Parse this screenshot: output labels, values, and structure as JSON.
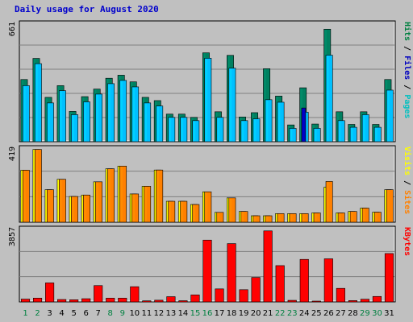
{
  "chart_data": [
    {
      "type": "bar",
      "title": "Daily usage for August 2020",
      "panel": "top",
      "ymax_label": "661",
      "ylim": [
        0,
        661
      ],
      "legend": [
        {
          "label": "Pages",
          "color": "#00c0c0"
        },
        {
          "label": "Files",
          "color": "#0000c0"
        },
        {
          "label": "Hits",
          "color": "#008040"
        }
      ],
      "categories": [
        "1",
        "2",
        "3",
        "4",
        "5",
        "6",
        "7",
        "8",
        "9",
        "10",
        "11",
        "12",
        "13",
        "14",
        "15",
        "16",
        "17",
        "18",
        "19",
        "20",
        "21",
        "22",
        "23",
        "24",
        "25",
        "26",
        "27",
        "28",
        "29",
        "30",
        "31"
      ],
      "series": [
        {
          "name": "Hits",
          "color": "#008060",
          "values": [
            345,
            462,
            246,
            311,
            168,
            250,
            292,
            352,
            369,
            332,
            246,
            228,
            153,
            153,
            135,
            493,
            166,
            479,
            137,
            161,
            405,
            253,
            93,
            299,
            98,
            624,
            166,
            96,
            166,
            96,
            345
          ]
        },
        {
          "name": "Files",
          "color": "#00c0ff",
          "values": [
            311,
            433,
            215,
            283,
            150,
            221,
            264,
            322,
            340,
            304,
            215,
            198,
            135,
            135,
            117,
            463,
            135,
            408,
            117,
            127,
            233,
            219,
            74,
            164,
            74,
            480,
            117,
            80,
            150,
            80,
            286
          ]
        },
        {
          "name": "Pages",
          "color": "#0000c0",
          "values": [
            0,
            0,
            0,
            0,
            0,
            0,
            0,
            0,
            0,
            0,
            0,
            0,
            0,
            0,
            0,
            0,
            0,
            0,
            0,
            0,
            0,
            0,
            0,
            187,
            0,
            0,
            0,
            0,
            0,
            0,
            0
          ]
        }
      ]
    },
    {
      "type": "bar",
      "panel": "middle",
      "ymax_label": "419",
      "ylim": [
        0,
        419
      ],
      "legend": [
        {
          "label": "Sites",
          "color": "#ff8000"
        },
        {
          "label": "Visits",
          "color": "#ffff00"
        }
      ],
      "categories": [
        "1",
        "2",
        "3",
        "4",
        "5",
        "6",
        "7",
        "8",
        "9",
        "10",
        "11",
        "12",
        "13",
        "14",
        "15",
        "16",
        "17",
        "18",
        "19",
        "20",
        "21",
        "22",
        "23",
        "24",
        "25",
        "26",
        "27",
        "28",
        "29",
        "30",
        "31"
      ],
      "series": [
        {
          "name": "Visits",
          "color": "#ffff00",
          "values": [
            291,
            407,
            182,
            240,
            144,
            152,
            226,
            299,
            314,
            158,
            201,
            292,
            117,
            117,
            99,
            170,
            55,
            136,
            60,
            36,
            36,
            48,
            48,
            48,
            52,
            196,
            52,
            60,
            79,
            56,
            182
          ]
        },
        {
          "name": "Sites",
          "color": "#ff8000",
          "values": [
            291,
            407,
            182,
            240,
            144,
            152,
            226,
            299,
            314,
            158,
            201,
            292,
            117,
            117,
            99,
            170,
            55,
            136,
            60,
            36,
            36,
            48,
            48,
            48,
            52,
            228,
            52,
            60,
            79,
            56,
            182
          ]
        }
      ]
    },
    {
      "type": "bar",
      "panel": "bottom",
      "ymax_label": "3857",
      "ylim": [
        0,
        3857
      ],
      "legend": [
        {
          "label": "KBytes",
          "color": "#ff0000"
        }
      ],
      "categories": [
        "1",
        "2",
        "3",
        "4",
        "5",
        "6",
        "7",
        "8",
        "9",
        "10",
        "11",
        "12",
        "13",
        "14",
        "15",
        "16",
        "17",
        "18",
        "19",
        "20",
        "21",
        "22",
        "23",
        "24",
        "25",
        "26",
        "27",
        "28",
        "29",
        "30",
        "31"
      ],
      "series": [
        {
          "name": "KBytes",
          "color": "#ff0000",
          "values": [
            145,
            197,
            989,
            124,
            109,
            165,
            849,
            195,
            195,
            791,
            54,
            88,
            272,
            61,
            363,
            3218,
            677,
            3035,
            636,
            1272,
            3698,
            1889,
            81,
            2213,
            43,
            2244,
            705,
            67,
            138,
            283,
            2518
          ]
        }
      ]
    }
  ],
  "x_labels": [
    "1",
    "2",
    "3",
    "4",
    "5",
    "6",
    "7",
    "8",
    "9",
    "10",
    "11",
    "12",
    "13",
    "14",
    "15",
    "16",
    "17",
    "18",
    "19",
    "20",
    "21",
    "22",
    "23",
    "24",
    "25",
    "26",
    "27",
    "28",
    "29",
    "30",
    "31"
  ],
  "weekend_days": [
    "1",
    "2",
    "8",
    "9",
    "15",
    "16",
    "22",
    "23",
    "29",
    "30"
  ],
  "colors": {
    "background": "#c0c0c0",
    "plot_bg": "#c0c0c0",
    "grid": "#808080",
    "weekday_label": "#000000",
    "weekend_label": "#008040",
    "title": "#0000cc"
  }
}
